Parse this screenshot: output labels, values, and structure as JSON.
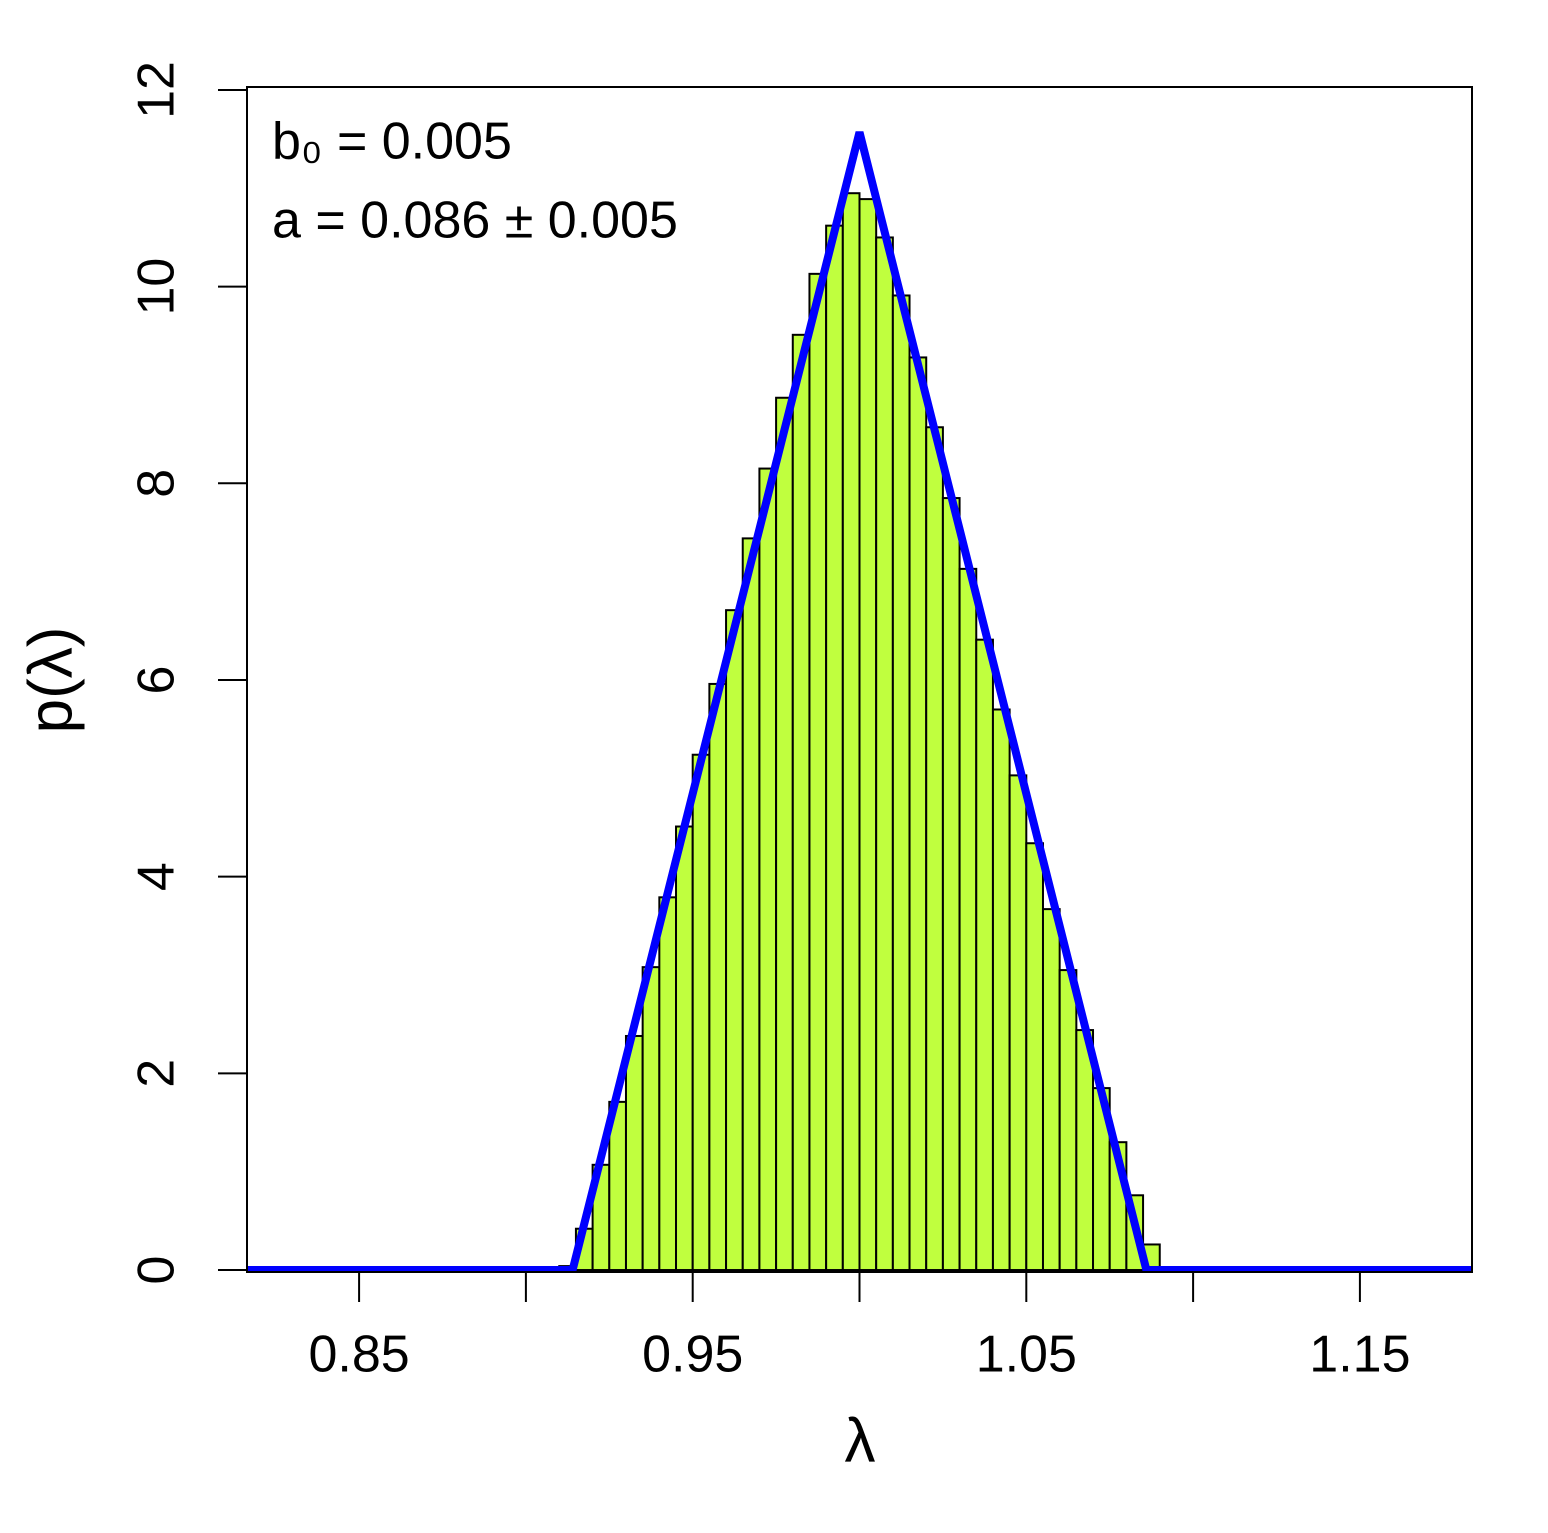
{
  "chart_data": {
    "type": "histogram",
    "x_label": "λ",
    "y_label": "p(λ)",
    "annotations": [
      "b₀ = 0.005",
      "a = 0.086 ± 0.005"
    ],
    "bins": [
      0.91,
      0.915,
      0.92,
      0.925,
      0.93,
      0.935,
      0.94,
      0.945,
      0.95,
      0.955,
      0.96,
      0.965,
      0.97,
      0.975,
      0.98,
      0.985,
      0.99,
      0.995,
      1.0,
      1.005,
      1.01,
      1.015,
      1.02,
      1.025,
      1.03,
      1.035,
      1.04,
      1.045,
      1.05,
      1.055,
      1.06,
      1.065,
      1.07,
      1.075,
      1.08,
      1.085,
      1.09
    ],
    "values": [
      0.04,
      0.42,
      1.07,
      1.71,
      2.38,
      3.08,
      3.79,
      4.51,
      5.24,
      5.96,
      6.71,
      7.44,
      8.15,
      8.87,
      9.51,
      10.13,
      10.62,
      10.95,
      10.89,
      10.5,
      9.91,
      9.28,
      8.57,
      7.85,
      7.13,
      6.41,
      5.7,
      5.03,
      4.34,
      3.67,
      3.05,
      2.44,
      1.85,
      1.3,
      0.76,
      0.26
    ],
    "color": "#c0ff3e",
    "overlay": {
      "type": "line",
      "x": [
        0.8,
        0.914,
        1.0,
        1.086,
        1.2
      ],
      "values": [
        0,
        0,
        11.57,
        0,
        0
      ],
      "color": "#0000ff"
    },
    "xlim": [
      0.8164,
      1.1836
    ],
    "ylim": [
      -0.02,
      12.03
    ],
    "xticks": [
      0.85,
      {
        "value": 0.9,
        "label": null
      },
      0.95,
      {
        "value": 1.0,
        "label": null
      },
      1.05,
      {
        "value": 1.1,
        "label": null
      },
      1.15
    ],
    "yticks": [
      0,
      2,
      4,
      6,
      8,
      10,
      12
    ]
  }
}
